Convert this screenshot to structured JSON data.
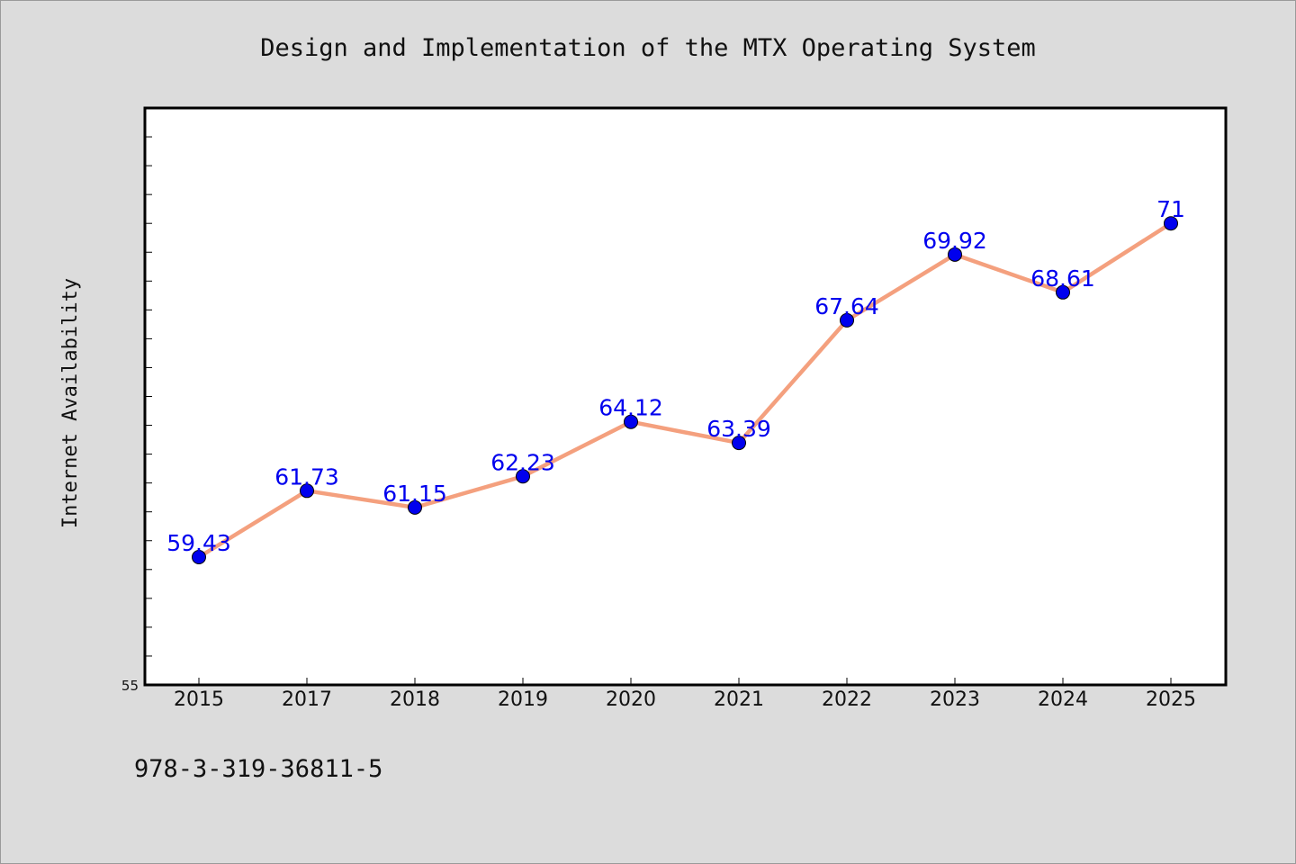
{
  "chart_data": {
    "type": "line",
    "title": "Design and Implementation of the MTX Operating System",
    "xlabel": "",
    "ylabel": "Internet Availability",
    "categories": [
      "2015",
      "2017",
      "2018",
      "2019",
      "2020",
      "2021",
      "2022",
      "2023",
      "2024",
      "2025"
    ],
    "series": [
      {
        "values": [
          59.43,
          61.73,
          61.15,
          62.23,
          64.12,
          63.39,
          67.64,
          69.92,
          68.61,
          71
        ]
      }
    ],
    "data_labels": [
      "59.43",
      "61.73",
      "61.15",
      "62.23",
      "64.12",
      "63.39",
      "67.64",
      "69.92",
      "68.61",
      "71"
    ],
    "ylim": [
      55,
      75
    ],
    "y_min_label": "55",
    "grid": false,
    "line_color": "#f4a07e",
    "marker_color": "#0000ee",
    "label_color": "#0000ee"
  },
  "footer": {
    "isbn": "978-3-319-36811-5"
  }
}
